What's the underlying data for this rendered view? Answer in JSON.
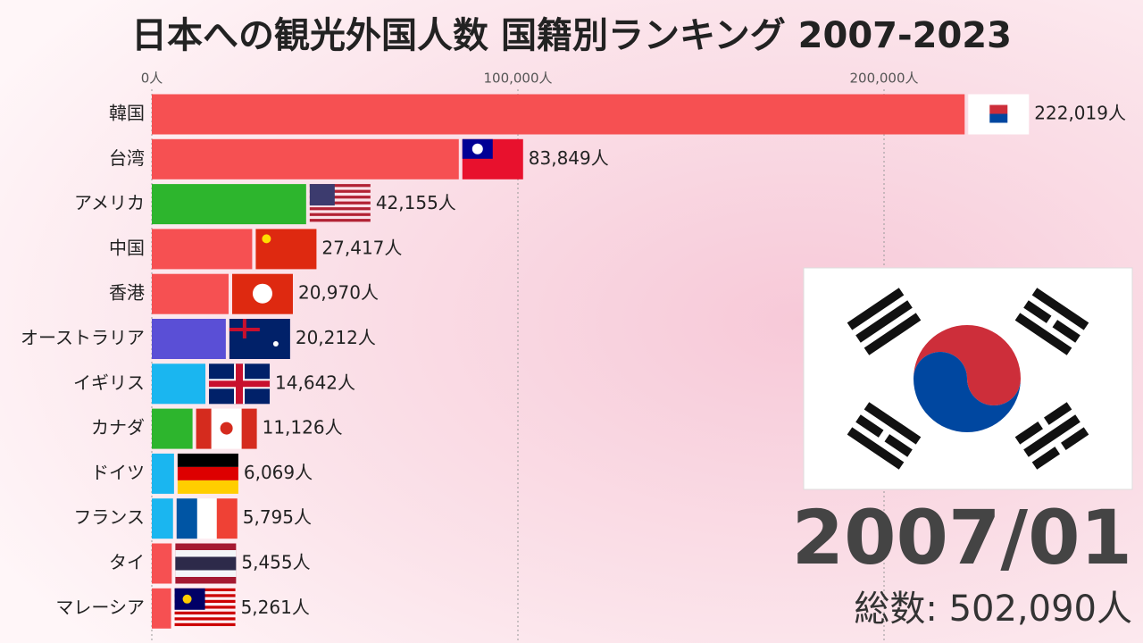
{
  "chart_data": {
    "type": "bar",
    "orientation": "horizontal",
    "title": "日本への観光外国人数 国籍別ランキング 2007-2023",
    "categories": [
      "韓国",
      "台湾",
      "アメリカ",
      "中国",
      "香港",
      "オーストラリア",
      "イギリス",
      "カナダ",
      "ドイツ",
      "フランス",
      "タイ",
      "マレーシア"
    ],
    "values": [
      222019,
      83849,
      42155,
      27417,
      20970,
      20212,
      14642,
      11126,
      6069,
      5795,
      5455,
      5261
    ],
    "value_labels": [
      "222,019人",
      "83,849人",
      "42,155人",
      "27,417人",
      "20,970人",
      "20,212人",
      "14,642人",
      "11,126人",
      "6,069人",
      "5,795人",
      "5,455人",
      "5,261人"
    ],
    "colors": [
      "#f65052",
      "#f65052",
      "#2db52d",
      "#f65052",
      "#f65052",
      "#5a4fd6",
      "#1ab6f0",
      "#2db52d",
      "#1ab6f0",
      "#1ab6f0",
      "#f65052",
      "#f65052"
    ],
    "xlim": [
      0,
      270000
    ],
    "xticks": [
      {
        "value": 0,
        "label": "0人"
      },
      {
        "value": 100000,
        "label": "100,000人"
      },
      {
        "value": 200000,
        "label": "200,000人"
      }
    ],
    "grid": true,
    "date_label": "2007/01",
    "total_label": "総数: 502,090人"
  }
}
